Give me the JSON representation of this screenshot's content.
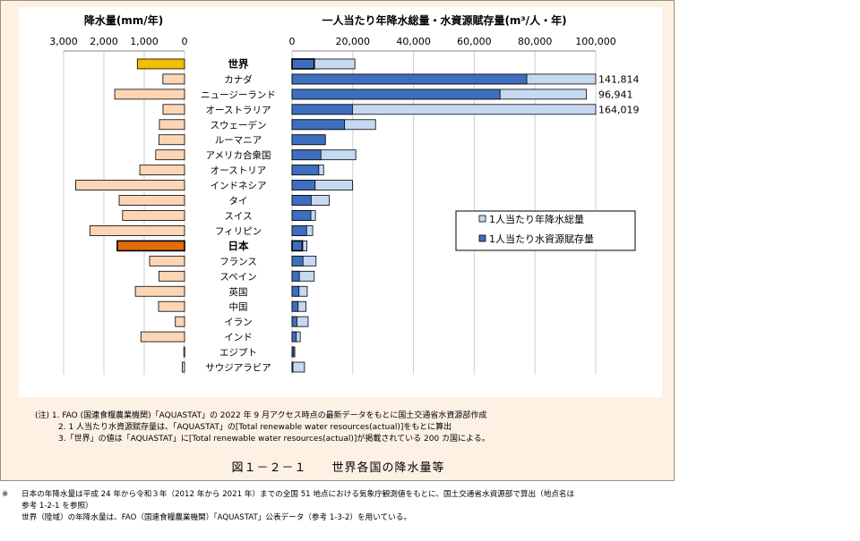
{
  "chart_data": {
    "type": "bar",
    "left_axis_title": "降水量(mm/年)",
    "right_axis_title": "一人当たり年降水総量・水資源賦存量(m³/人・年)",
    "left_ticks": [
      "3,000",
      "2,000",
      "1,000",
      "0"
    ],
    "right_ticks": [
      "0",
      "20,000",
      "40,000",
      "60,000",
      "80,000",
      "100,000"
    ],
    "left_xlim": [
      0,
      3000
    ],
    "right_xlim": [
      0,
      100000
    ],
    "categories": [
      "世界",
      "カナダ",
      "ニュージーランド",
      "オーストラリア",
      "スウェーデン",
      "ルーマニア",
      "アメリカ合衆国",
      "オーストリア",
      "インドネシア",
      "タイ",
      "スイス",
      "フィリピン",
      "日本",
      "フランス",
      "スペイン",
      "英国",
      "中国",
      "イラン",
      "インド",
      "エジプト",
      "サウジアラビア"
    ],
    "bold_categories": [
      "世界",
      "日本"
    ],
    "precipitation": [
      1171,
      537,
      1732,
      534,
      624,
      637,
      715,
      1110,
      2702,
      1622,
      1537,
      2348,
      1668,
      867,
      636,
      1220,
      645,
      228,
      1083,
      18,
      59
    ],
    "total_per_capita": [
      20700,
      141814,
      96941,
      164019,
      27500,
      10500,
      21000,
      10400,
      19900,
      12300,
      7700,
      6800,
      4900,
      7900,
      7300,
      5000,
      4600,
      5300,
      2700,
      900,
      4100
    ],
    "resources_per_capita": [
      7300,
      77300,
      68500,
      19900,
      17300,
      11000,
      9500,
      8800,
      7600,
      6300,
      6200,
      4800,
      3400,
      3600,
      2400,
      2300,
      2000,
      1600,
      1400,
      560,
      80
    ],
    "data_labels": [
      "141,814",
      "96,941",
      "164,019"
    ],
    "legend": [
      "1人当たり年降水総量",
      "1人当たり水資源賦存量"
    ],
    "colors": {
      "precip": "#fcd5b5",
      "precip_world": "#f2be00",
      "precip_japan": "#e46c0a",
      "total": "#c6d9f1",
      "resources": "#3e6fbf"
    }
  },
  "notes": [
    "(注) 1. FAO (国連食糧農業機関)「AQUASTAT」の 2022 年 9 月アクセス時点の最新データをもとに国土交通省水資源部作成",
    "2. 1 人当たり水資源賦存量は、「AQUASTAT」の[Total renewable water resources(actual)]をもとに算出",
    "3.「世界」の値は「AQUASTAT」に[Total renewable water resources(actual)]が掲載されている 200 カ国による。"
  ],
  "caption": "図１－２－１　　世界各国の降水量等",
  "footnote": {
    "mark": "※",
    "lines": [
      "日本の年降水量は平成 24 年から令和３年（2012 年から 2021 年）までの全国 51 地点における気象庁観測値をもとに、国土交通省水資源部で算出（地点名は",
      "参考 1-2-1 を参照）",
      "世界（陸域）の年降水量は、FAO（国連食糧農業機関）「AQUASTAT」公表データ（参考 1-3-2）を用いている。"
    ]
  }
}
